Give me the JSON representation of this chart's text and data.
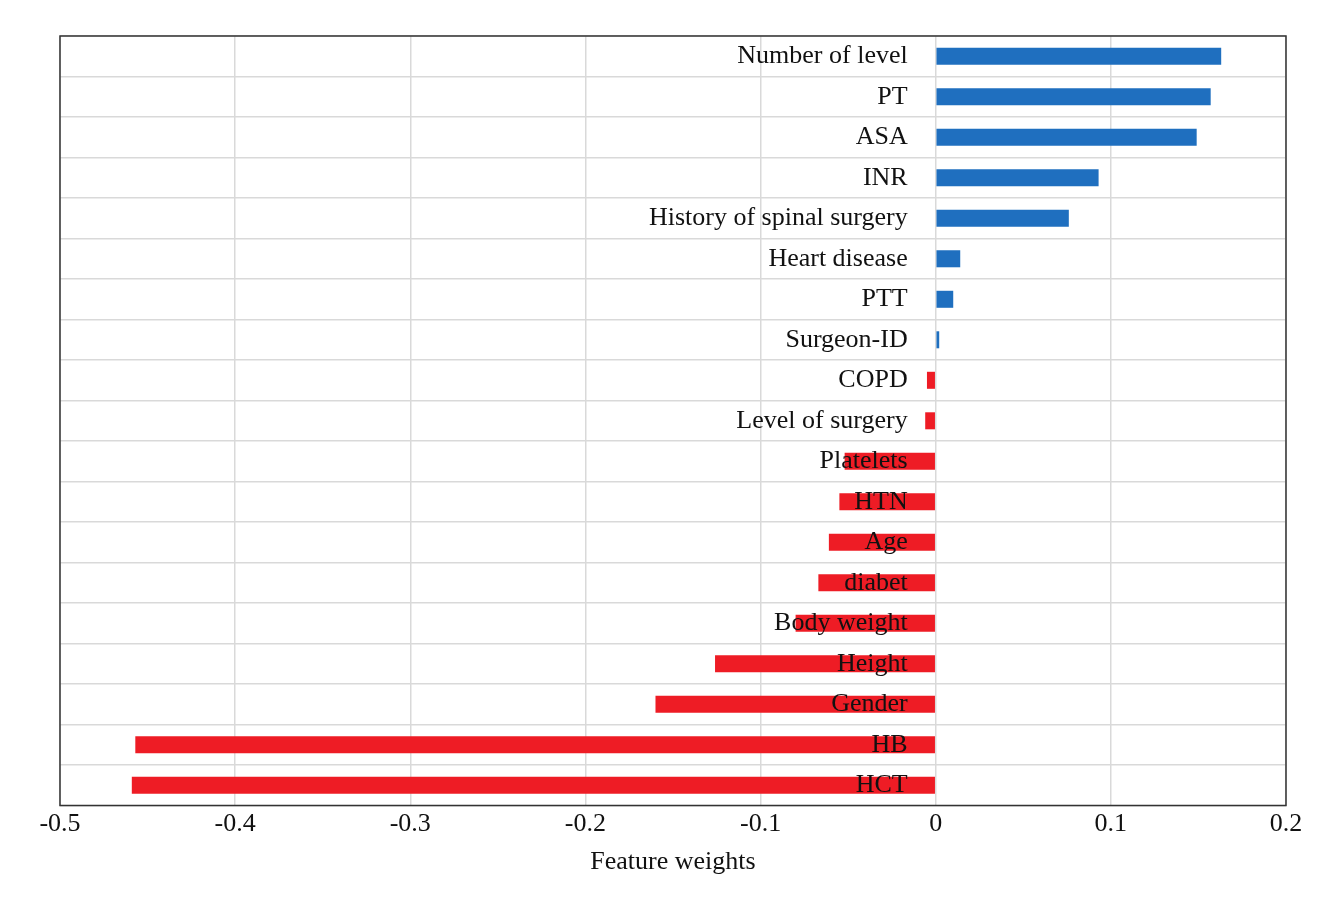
{
  "chart_data": {
    "type": "bar",
    "orientation": "horizontal",
    "xlabel": "Feature weights",
    "categories": [
      "Number of level",
      "PT",
      "ASA",
      "INR",
      "History of spinal surgery",
      "Heart disease",
      "PTT",
      "Surgeon-ID",
      "COPD",
      "Level of surgery",
      "Platelets",
      "HTN",
      "Age",
      "diabet",
      "Body weight",
      "Height",
      "Gender",
      "HB",
      "HCT"
    ],
    "values": [
      0.163,
      0.157,
      0.149,
      0.093,
      0.076,
      0.014,
      0.01,
      0.002,
      -0.005,
      -0.006,
      -0.052,
      -0.055,
      -0.061,
      -0.067,
      -0.08,
      -0.126,
      -0.16,
      -0.457,
      -0.459
    ],
    "colors": [
      "#1f6fbf",
      "#1f6fbf",
      "#1f6fbf",
      "#1f6fbf",
      "#1f6fbf",
      "#1f6fbf",
      "#1f6fbf",
      "#1f6fbf",
      "#ee1c25",
      "#ee1c25",
      "#ee1c25",
      "#ee1c25",
      "#ee1c25",
      "#ee1c25",
      "#ee1c25",
      "#ee1c25",
      "#ee1c25",
      "#ee1c25",
      "#ee1c25"
    ],
    "xlim": [
      -0.5,
      0.2
    ],
    "xticks": [
      -0.5,
      -0.4,
      -0.3,
      -0.2,
      -0.1,
      0,
      0.1,
      0.2
    ],
    "grid": true
  }
}
